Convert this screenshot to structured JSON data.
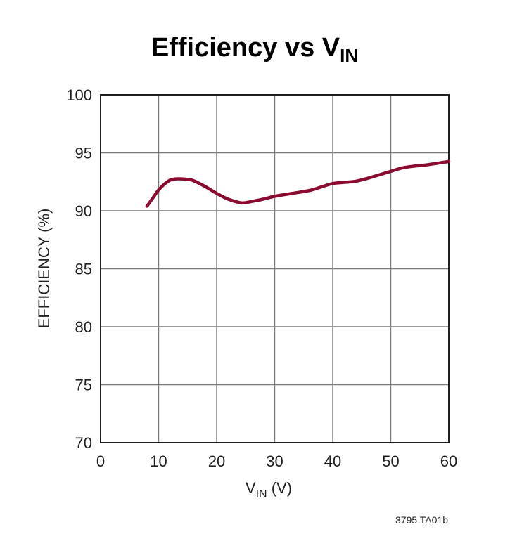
{
  "chart_data": {
    "type": "line",
    "title": "Efficiency vs V",
    "title_subscript": "IN",
    "xlabel": "V",
    "xlabel_subscript": "IN",
    "xlabel_suffix": " (V)",
    "ylabel": "EFFICIENCY (%)",
    "xlim": [
      0,
      60
    ],
    "ylim": [
      70,
      100
    ],
    "x_ticks": [
      0,
      10,
      20,
      30,
      40,
      50,
      60
    ],
    "y_ticks": [
      70,
      75,
      80,
      85,
      90,
      95,
      100
    ],
    "grid": true,
    "series": [
      {
        "color": "#8b0a30",
        "x": [
          8,
          9,
          10,
          11,
          12,
          13,
          14,
          15,
          16,
          18,
          20,
          22,
          24,
          25,
          26,
          28,
          30,
          33,
          36,
          38,
          40,
          42,
          44,
          46,
          48,
          50,
          52,
          54,
          56,
          58,
          60
        ],
        "y": [
          90.4,
          91.1,
          91.8,
          92.3,
          92.65,
          92.75,
          92.75,
          92.7,
          92.6,
          92.1,
          91.5,
          91.0,
          90.7,
          90.7,
          90.8,
          91.0,
          91.25,
          91.5,
          91.75,
          92.05,
          92.35,
          92.45,
          92.55,
          92.8,
          93.1,
          93.4,
          93.7,
          93.85,
          93.95,
          94.1,
          94.25
        ]
      }
    ],
    "footnote": "3795 TA01b"
  }
}
